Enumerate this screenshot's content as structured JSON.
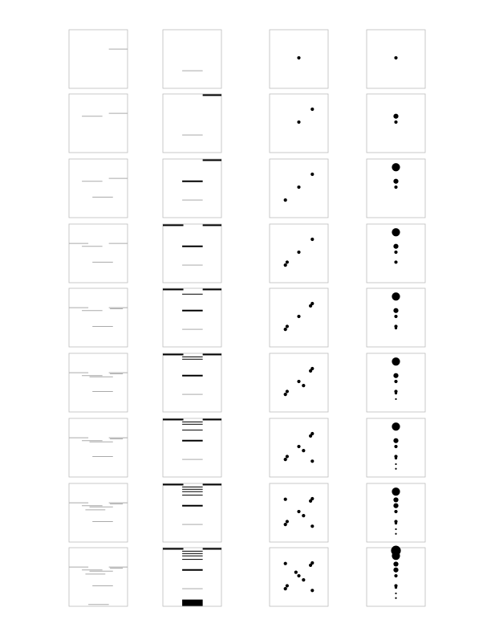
{
  "figure": {
    "rows": 9,
    "columns": [
      "gray-lines",
      "black-bars",
      "scatter-dots",
      "stacked-circles"
    ],
    "colors": {
      "panel_border": "#bdbdbd",
      "gray_mark": "#aaaaaa",
      "black_mark": "#000000",
      "background": "#ffffff"
    }
  },
  "panels": [
    {
      "col0": [
        [
          0.68,
          1.0,
          0.33
        ]
      ],
      "col1": [
        [
          0.33,
          0.68,
          0.7,
          1
        ]
      ],
      "col2": [
        [
          0.5,
          0.48,
          3
        ]
      ],
      "col3": [
        [
          0.5,
          0.48,
          3
        ]
      ]
    },
    {
      "col0": [
        [
          0.22,
          0.57,
          0.38
        ],
        [
          0.68,
          1.0,
          0.33
        ]
      ],
      "col1": [
        [
          0.33,
          0.68,
          0.7,
          1
        ],
        [
          0.68,
          1.0,
          0.02,
          2
        ]
      ],
      "col2": [
        [
          0.5,
          0.48,
          3
        ],
        [
          0.73,
          0.26,
          3
        ]
      ],
      "col3": [
        [
          0.5,
          0.48,
          3
        ],
        [
          0.5,
          0.38,
          5
        ]
      ]
    },
    {
      "col0": [
        [
          0.22,
          0.57,
          0.38
        ],
        [
          0.68,
          1.0,
          0.33
        ],
        [
          0.4,
          0.75,
          0.65
        ]
      ],
      "col1": [
        [
          0.33,
          0.68,
          0.7,
          1
        ],
        [
          0.68,
          1.0,
          0.02,
          2
        ],
        [
          0.33,
          0.68,
          0.38,
          2
        ]
      ],
      "col2": [
        [
          0.5,
          0.48,
          3
        ],
        [
          0.73,
          0.26,
          3
        ],
        [
          0.27,
          0.7,
          3
        ]
      ],
      "col3": [
        [
          0.5,
          0.48,
          3
        ],
        [
          0.5,
          0.38,
          5
        ],
        [
          0.5,
          0.14,
          9
        ]
      ]
    },
    {
      "col0": [
        [
          0.22,
          0.57,
          0.38
        ],
        [
          0.68,
          1.0,
          0.33
        ],
        [
          0.4,
          0.75,
          0.65
        ],
        [
          0.0,
          0.33,
          0.33
        ]
      ],
      "col1": [
        [
          0.33,
          0.68,
          0.7,
          1
        ],
        [
          0.68,
          1.0,
          0.02,
          2
        ],
        [
          0.33,
          0.68,
          0.38,
          2
        ],
        [
          0.0,
          0.35,
          0.02,
          2
        ]
      ],
      "col2": [
        [
          0.5,
          0.48,
          3
        ],
        [
          0.73,
          0.26,
          3
        ],
        [
          0.27,
          0.7,
          3
        ],
        [
          0.3,
          0.65,
          3
        ]
      ],
      "col3": [
        [
          0.5,
          0.48,
          3
        ],
        [
          0.5,
          0.38,
          5
        ],
        [
          0.5,
          0.14,
          9
        ],
        [
          0.5,
          0.65,
          3
        ]
      ]
    },
    {
      "col0": [
        [
          0.22,
          0.57,
          0.38
        ],
        [
          0.68,
          1.0,
          0.33
        ],
        [
          0.4,
          0.75,
          0.65
        ],
        [
          0.0,
          0.33,
          0.33
        ],
        [
          0.7,
          0.92,
          0.35
        ]
      ],
      "col1": [
        [
          0.33,
          0.68,
          0.7,
          1
        ],
        [
          0.68,
          1.0,
          0.02,
          2
        ],
        [
          0.33,
          0.68,
          0.38,
          2
        ],
        [
          0.0,
          0.35,
          0.02,
          2
        ],
        [
          0.33,
          0.68,
          0.1,
          1
        ]
      ],
      "col2": [
        [
          0.5,
          0.48,
          3
        ],
        [
          0.73,
          0.26,
          3
        ],
        [
          0.27,
          0.7,
          3
        ],
        [
          0.3,
          0.65,
          3
        ],
        [
          0.7,
          0.3,
          3
        ]
      ],
      "col3": [
        [
          0.5,
          0.48,
          3
        ],
        [
          0.5,
          0.38,
          5
        ],
        [
          0.5,
          0.14,
          9
        ],
        [
          0.5,
          0.65,
          3
        ],
        [
          0.5,
          0.68,
          2
        ]
      ]
    },
    {
      "col0": [
        [
          0.22,
          0.57,
          0.38
        ],
        [
          0.68,
          1.0,
          0.33
        ],
        [
          0.4,
          0.75,
          0.65
        ],
        [
          0.0,
          0.33,
          0.33
        ],
        [
          0.7,
          0.92,
          0.35
        ],
        [
          0.35,
          0.75,
          0.4
        ]
      ],
      "col1": [
        [
          0.33,
          0.68,
          0.7,
          1
        ],
        [
          0.68,
          1.0,
          0.02,
          2
        ],
        [
          0.33,
          0.68,
          0.38,
          2
        ],
        [
          0.0,
          0.35,
          0.02,
          2
        ],
        [
          0.33,
          0.68,
          0.1,
          1
        ],
        [
          0.33,
          0.68,
          0.06,
          1
        ]
      ],
      "col2": [
        [
          0.5,
          0.48,
          3
        ],
        [
          0.73,
          0.26,
          3
        ],
        [
          0.27,
          0.7,
          3
        ],
        [
          0.3,
          0.65,
          3
        ],
        [
          0.7,
          0.3,
          3
        ],
        [
          0.58,
          0.55,
          3
        ]
      ],
      "col3": [
        [
          0.5,
          0.48,
          3
        ],
        [
          0.5,
          0.38,
          5
        ],
        [
          0.5,
          0.14,
          9
        ],
        [
          0.5,
          0.65,
          3
        ],
        [
          0.5,
          0.68,
          2
        ],
        [
          0.5,
          0.78,
          1
        ]
      ]
    },
    {
      "col0": [
        [
          0.22,
          0.57,
          0.38
        ],
        [
          0.68,
          1.0,
          0.33
        ],
        [
          0.4,
          0.75,
          0.65
        ],
        [
          0.0,
          0.33,
          0.33
        ],
        [
          0.7,
          0.92,
          0.35
        ],
        [
          0.35,
          0.75,
          0.4
        ]
      ],
      "col1": [
        [
          0.33,
          0.68,
          0.7,
          1
        ],
        [
          0.68,
          1.0,
          0.02,
          2
        ],
        [
          0.33,
          0.68,
          0.38,
          2
        ],
        [
          0.0,
          0.35,
          0.02,
          2
        ],
        [
          0.33,
          0.68,
          0.1,
          1
        ],
        [
          0.33,
          0.68,
          0.06,
          1
        ],
        [
          0.33,
          0.68,
          0.2,
          1
        ]
      ],
      "col2": [
        [
          0.5,
          0.48,
          3
        ],
        [
          0.73,
          0.26,
          3
        ],
        [
          0.27,
          0.7,
          3
        ],
        [
          0.3,
          0.65,
          3
        ],
        [
          0.7,
          0.3,
          3
        ],
        [
          0.58,
          0.55,
          3
        ],
        [
          0.73,
          0.73,
          3
        ]
      ],
      "col3": [
        [
          0.5,
          0.48,
          3
        ],
        [
          0.5,
          0.38,
          5
        ],
        [
          0.5,
          0.14,
          9
        ],
        [
          0.5,
          0.65,
          3
        ],
        [
          0.5,
          0.68,
          2
        ],
        [
          0.5,
          0.78,
          1
        ],
        [
          0.5,
          0.86,
          1
        ]
      ]
    },
    {
      "col0": [
        [
          0.22,
          0.57,
          0.38
        ],
        [
          0.68,
          1.0,
          0.33
        ],
        [
          0.4,
          0.75,
          0.65
        ],
        [
          0.0,
          0.33,
          0.33
        ],
        [
          0.7,
          0.92,
          0.35
        ],
        [
          0.35,
          0.75,
          0.4
        ],
        [
          0.28,
          0.62,
          0.45
        ]
      ],
      "col1": [
        [
          0.33,
          0.68,
          0.7,
          1
        ],
        [
          0.68,
          1.0,
          0.02,
          2
        ],
        [
          0.33,
          0.68,
          0.38,
          2
        ],
        [
          0.0,
          0.35,
          0.02,
          2
        ],
        [
          0.33,
          0.68,
          0.1,
          1
        ],
        [
          0.33,
          0.68,
          0.06,
          1
        ],
        [
          0.33,
          0.68,
          0.2,
          1
        ],
        [
          0.33,
          0.68,
          0.14,
          1
        ]
      ],
      "col2": [
        [
          0.5,
          0.48,
          3
        ],
        [
          0.73,
          0.26,
          3
        ],
        [
          0.27,
          0.7,
          3
        ],
        [
          0.3,
          0.65,
          3
        ],
        [
          0.7,
          0.3,
          3
        ],
        [
          0.58,
          0.55,
          3
        ],
        [
          0.73,
          0.73,
          3
        ],
        [
          0.27,
          0.27,
          3
        ]
      ],
      "col3": [
        [
          0.5,
          0.48,
          3
        ],
        [
          0.5,
          0.38,
          5
        ],
        [
          0.5,
          0.14,
          9
        ],
        [
          0.5,
          0.65,
          3
        ],
        [
          0.5,
          0.68,
          2
        ],
        [
          0.5,
          0.78,
          1
        ],
        [
          0.5,
          0.86,
          1
        ],
        [
          0.5,
          0.28,
          5
        ]
      ]
    },
    {
      "col0": [
        [
          0.22,
          0.57,
          0.38
        ],
        [
          0.68,
          1.0,
          0.33
        ],
        [
          0.4,
          0.75,
          0.65
        ],
        [
          0.0,
          0.33,
          0.33
        ],
        [
          0.7,
          0.92,
          0.35
        ],
        [
          0.35,
          0.75,
          0.4
        ],
        [
          0.28,
          0.62,
          0.45
        ],
        [
          0.33,
          0.68,
          0.97
        ]
      ],
      "col1": [
        [
          0.33,
          0.68,
          0.7,
          1
        ],
        [
          0.68,
          1.0,
          0.02,
          2
        ],
        [
          0.33,
          0.68,
          0.38,
          2
        ],
        [
          0.0,
          0.35,
          0.02,
          2
        ],
        [
          0.33,
          0.68,
          0.1,
          1
        ],
        [
          0.33,
          0.68,
          0.06,
          1
        ],
        [
          0.33,
          0.68,
          0.2,
          1
        ],
        [
          0.33,
          0.68,
          0.14,
          1
        ],
        [
          0.33,
          0.68,
          0.94,
          8
        ]
      ],
      "col2": [
        [
          0.5,
          0.48,
          3
        ],
        [
          0.73,
          0.26,
          3
        ],
        [
          0.27,
          0.7,
          3
        ],
        [
          0.3,
          0.65,
          3
        ],
        [
          0.7,
          0.3,
          3
        ],
        [
          0.58,
          0.55,
          3
        ],
        [
          0.73,
          0.73,
          3
        ],
        [
          0.27,
          0.27,
          3
        ],
        [
          0.45,
          0.42,
          3
        ]
      ],
      "col3": [
        [
          0.5,
          0.48,
          3
        ],
        [
          0.5,
          0.38,
          5
        ],
        [
          0.5,
          0.14,
          9
        ],
        [
          0.5,
          0.65,
          3
        ],
        [
          0.5,
          0.68,
          2
        ],
        [
          0.5,
          0.78,
          1
        ],
        [
          0.5,
          0.86,
          1
        ],
        [
          0.5,
          0.28,
          5
        ],
        [
          0.5,
          0.05,
          11
        ]
      ]
    }
  ]
}
